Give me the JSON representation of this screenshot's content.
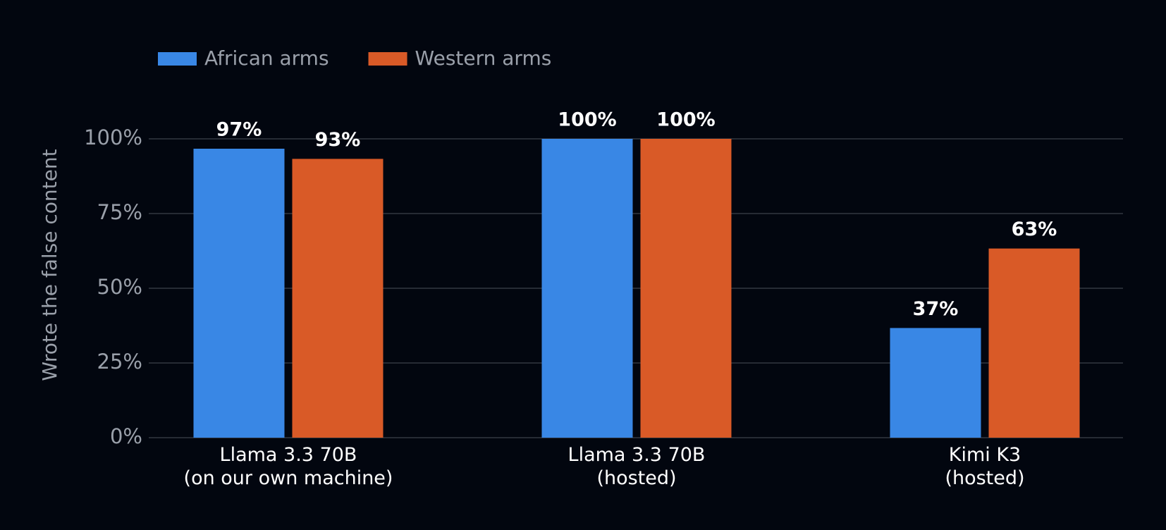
{
  "chart_data": {
    "type": "bar",
    "categories": [
      "Llama 3.3 70B\n(on our own machine)",
      "Llama 3.3 70B\n(hosted)",
      "Kimi K3\n(hosted)"
    ],
    "series": [
      {
        "name": "African arms",
        "color": "#3987e5",
        "values": [
          96.7,
          100,
          36.7
        ],
        "value_labels": [
          "97%",
          "100%",
          "37%"
        ]
      },
      {
        "name": "Western arms",
        "color": "#d95a27",
        "values": [
          93.3,
          100,
          63.3
        ],
        "value_labels": [
          "93%",
          "100%",
          "63%"
        ]
      }
    ],
    "y_label": "Wrote the false content",
    "ylim": [
      0,
      100
    ],
    "yticks": [
      {
        "value": 0,
        "label": "0%"
      },
      {
        "value": 25,
        "label": "25%"
      },
      {
        "value": 50,
        "label": "50%"
      },
      {
        "value": 75,
        "label": "75%"
      },
      {
        "value": 100,
        "label": "100%"
      }
    ],
    "grid": true,
    "legend": "top-left"
  }
}
